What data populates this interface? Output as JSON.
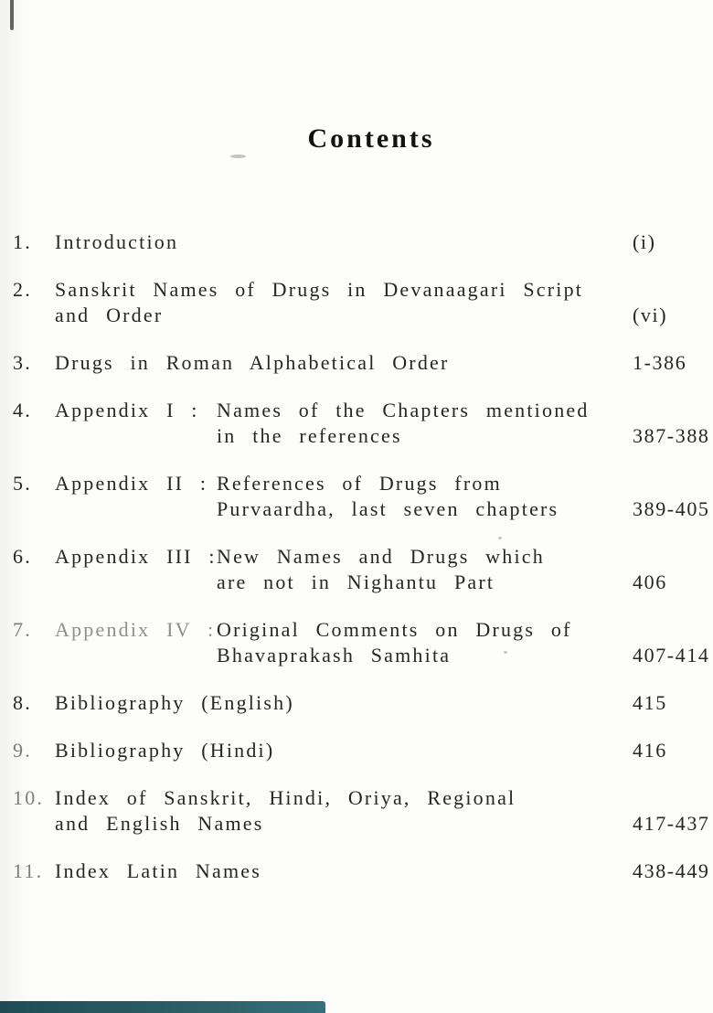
{
  "title": "Contents",
  "colors": {
    "background": "#fdfdfc",
    "text": "#262626",
    "faded_text": "#8f8f8f",
    "scan_bar": "#2f636c"
  },
  "items": [
    {
      "num": "1.",
      "text_lines": [
        "Introduction"
      ],
      "page": "(i)"
    },
    {
      "num": "2.",
      "text_lines": [
        "Sanskrit Names of Drugs in Devanaagari Script",
        "and Order"
      ],
      "page": "(vi)"
    },
    {
      "num": "3.",
      "text_lines": [
        "Drugs in Roman Alphabetical Order"
      ],
      "page": "1-386"
    },
    {
      "num": "4.",
      "label": "Appendix I :",
      "desc_lines": [
        "Names of the Chapters mentioned",
        "in the references"
      ],
      "page": "387-388"
    },
    {
      "num": "5.",
      "label": "Appendix II :",
      "desc_lines": [
        "References of Drugs from",
        "Purvaardha, last seven chapters"
      ],
      "page": "389-405"
    },
    {
      "num": "6.",
      "label": "Appendix III :",
      "desc_lines": [
        "New Names and Drugs which",
        "are not in Nighantu Part"
      ],
      "page": "406"
    },
    {
      "num": "7.",
      "label": "Appendix IV :",
      "desc_lines": [
        "Original Comments on Drugs of",
        "Bhavaprakash Samhita"
      ],
      "page": "407-414",
      "faded": true
    },
    {
      "num": "8.",
      "text_lines": [
        "Bibliography (English)"
      ],
      "page": "415"
    },
    {
      "num": "9.",
      "text_lines": [
        "Bibliography (Hindi)"
      ],
      "page": "416",
      "num_faded": true
    },
    {
      "num": "10.",
      "text_lines": [
        "Index of Sanskrit, Hindi, Oriya, Regional",
        "and English Names"
      ],
      "page": "417-437",
      "num_faded": true
    },
    {
      "num": "11.",
      "text_lines": [
        "Index Latin Names"
      ],
      "page": "438-449",
      "num_faded": true
    }
  ]
}
